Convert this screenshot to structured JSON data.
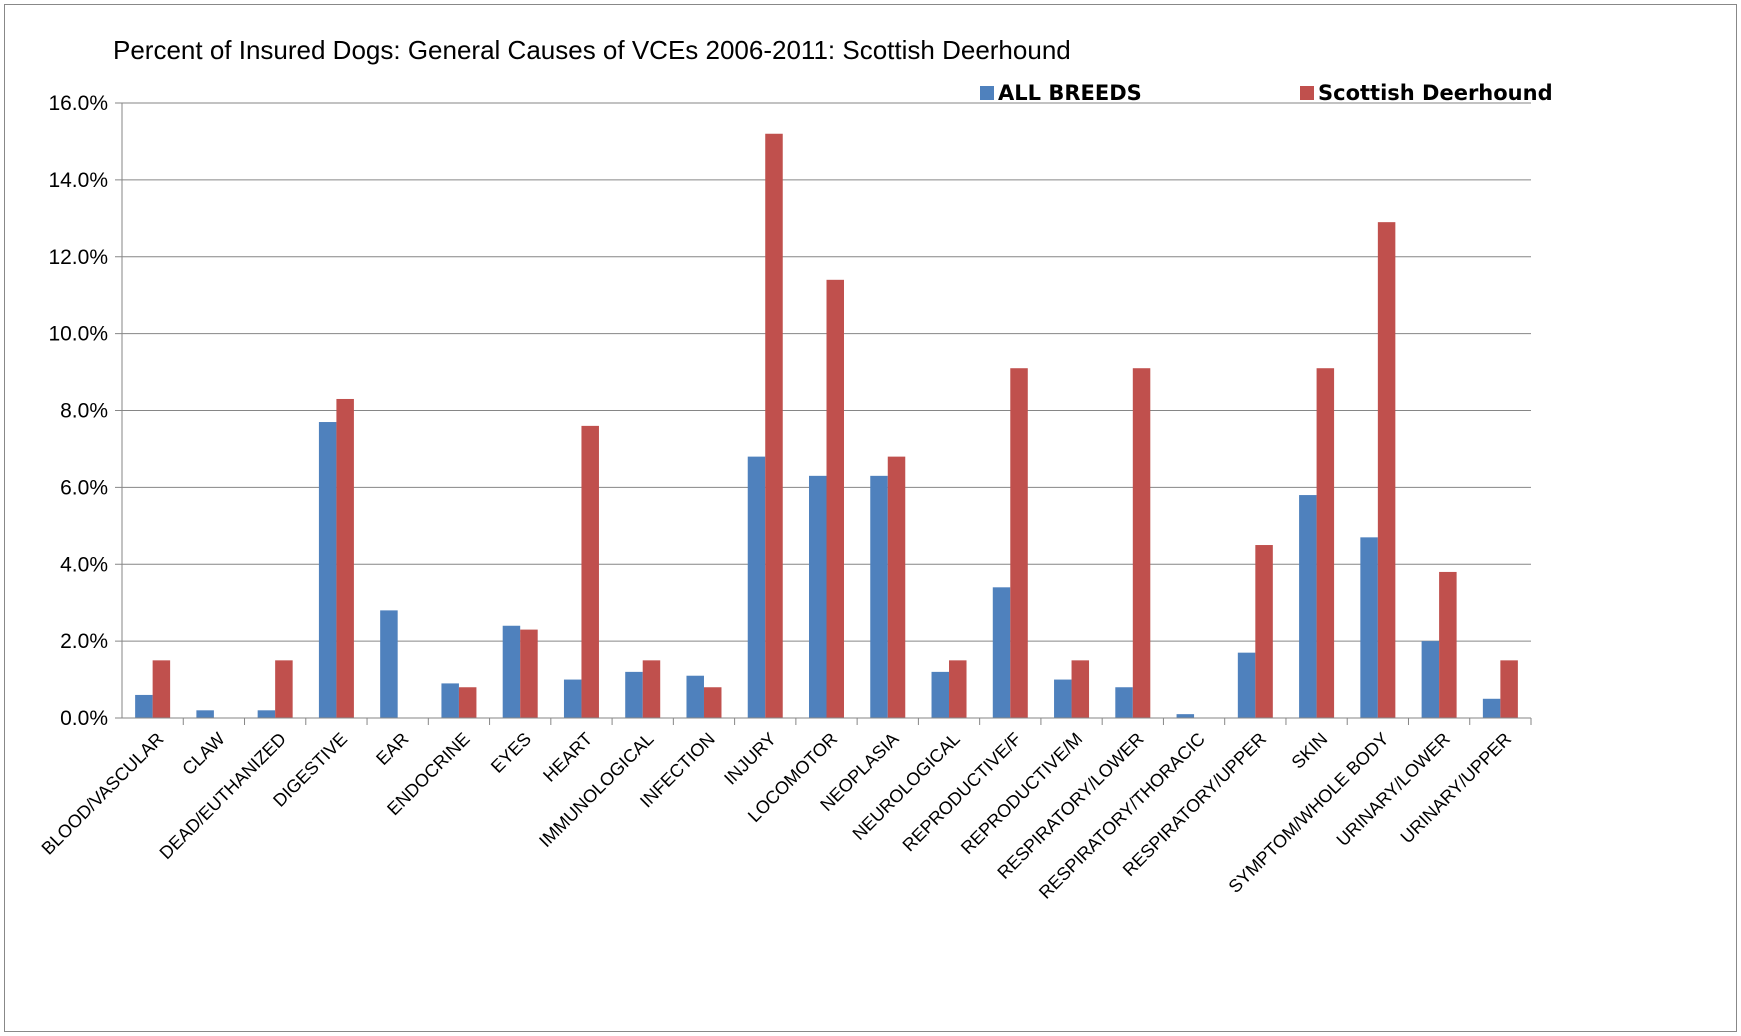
{
  "chart_data": {
    "type": "bar",
    "title": "Percent of Insured Dogs: General Causes of VCEs 2006-2011: Scottish Deerhound",
    "xlabel": "",
    "ylabel": "",
    "ylim": [
      0,
      16
    ],
    "yticks": [
      "0.0%",
      "2.0%",
      "4.0%",
      "6.0%",
      "8.0%",
      "10.0%",
      "12.0%",
      "14.0%",
      "16.0%"
    ],
    "grid": true,
    "legend_position": "top-right",
    "categories": [
      "BLOOD/VASCULAR",
      "CLAW",
      "DEAD/EUTHANIZED",
      "DIGESTIVE",
      "EAR",
      "ENDOCRINE",
      "EYES",
      "HEART",
      "IMMUNOLOGICAL",
      "INFECTION",
      "INJURY",
      "LOCOMOTOR",
      "NEOPLASIA",
      "NEUROLOGICAL",
      "REPRODUCTIVE/F",
      "REPRODUCTIVE/M",
      "RESPIRATORY/LOWER",
      "RESPIRATORY/THORACIC",
      "RESPIRATORY/UPPER",
      "SKIN",
      "SYMPTOM/WHOLE BODY",
      "URINARY/LOWER",
      "URINARY/UPPER"
    ],
    "series": [
      {
        "name": "ALL BREEDS",
        "color": "#4F81BD",
        "values": [
          0.6,
          0.2,
          0.2,
          7.7,
          2.8,
          0.9,
          2.4,
          1.0,
          1.2,
          1.1,
          6.8,
          6.3,
          6.3,
          1.2,
          3.4,
          1.0,
          0.8,
          0.1,
          1.7,
          5.8,
          4.7,
          2.0,
          0.5
        ]
      },
      {
        "name": "Scottish Deerhound",
        "color": "#C0504D",
        "values": [
          1.5,
          0.0,
          1.5,
          8.3,
          0.0,
          0.8,
          2.3,
          7.6,
          1.5,
          0.8,
          15.2,
          11.4,
          6.8,
          1.5,
          9.1,
          1.5,
          9.1,
          0.0,
          4.5,
          9.1,
          12.9,
          3.8,
          1.5
        ]
      }
    ]
  }
}
